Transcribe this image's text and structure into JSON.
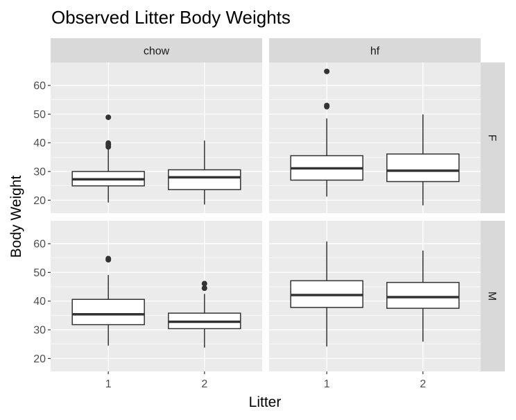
{
  "chart_data": {
    "type": "boxplot",
    "title": "Observed Litter Body Weights",
    "xlabel": "Litter",
    "ylabel": "Body Weight",
    "categories": [
      "1",
      "2"
    ],
    "ylim": [
      15.5,
      68
    ],
    "yticks": [
      20,
      30,
      40,
      50,
      60
    ],
    "grid": true,
    "col_facets": [
      "chow",
      "hf"
    ],
    "row_facets": [
      "F",
      "M"
    ],
    "panels": [
      {
        "col": "chow",
        "row": "F",
        "boxes": [
          {
            "x": "1",
            "lower_whisker": 19.2,
            "q1": 25.0,
            "median": 27.3,
            "q3": 30.0,
            "upper_whisker": 37.8,
            "outliers": [
              38.6,
              39.3,
              39.9,
              48.9
            ]
          },
          {
            "x": "2",
            "lower_whisker": 18.5,
            "q1": 23.7,
            "median": 28.0,
            "q3": 30.6,
            "upper_whisker": 40.8,
            "outliers": []
          }
        ]
      },
      {
        "col": "hf",
        "row": "F",
        "boxes": [
          {
            "x": "1",
            "lower_whisker": 21.3,
            "q1": 27.0,
            "median": 31.1,
            "q3": 35.5,
            "upper_whisker": 48.5,
            "outliers": [
              52.6,
              53.0,
              64.9
            ]
          },
          {
            "x": "2",
            "lower_whisker": 18.2,
            "q1": 26.5,
            "median": 30.3,
            "q3": 36.1,
            "upper_whisker": 49.9,
            "outliers": []
          }
        ]
      },
      {
        "col": "chow",
        "row": "M",
        "boxes": [
          {
            "x": "1",
            "lower_whisker": 24.5,
            "q1": 31.8,
            "median": 35.4,
            "q3": 40.6,
            "upper_whisker": 49.1,
            "outliers": [
              54.4,
              54.8
            ]
          },
          {
            "x": "2",
            "lower_whisker": 23.8,
            "q1": 30.4,
            "median": 32.8,
            "q3": 35.8,
            "upper_whisker": 42.5,
            "outliers": [
              44.5,
              46.1
            ]
          }
        ]
      },
      {
        "col": "hf",
        "row": "M",
        "boxes": [
          {
            "x": "1",
            "lower_whisker": 24.2,
            "q1": 37.8,
            "median": 42.1,
            "q3": 47.1,
            "upper_whisker": 60.8,
            "outliers": []
          },
          {
            "x": "2",
            "lower_whisker": 25.9,
            "q1": 37.5,
            "median": 41.4,
            "q3": 46.5,
            "upper_whisker": 57.6,
            "outliers": []
          }
        ]
      }
    ]
  },
  "colors": {
    "panel_background": "#ebebeb",
    "strip_background": "#d9d9d9",
    "grid_line": "#ffffff",
    "box_fill": "#ffffff",
    "box_line": "#333333",
    "tick_text": "#4d4d4d"
  }
}
